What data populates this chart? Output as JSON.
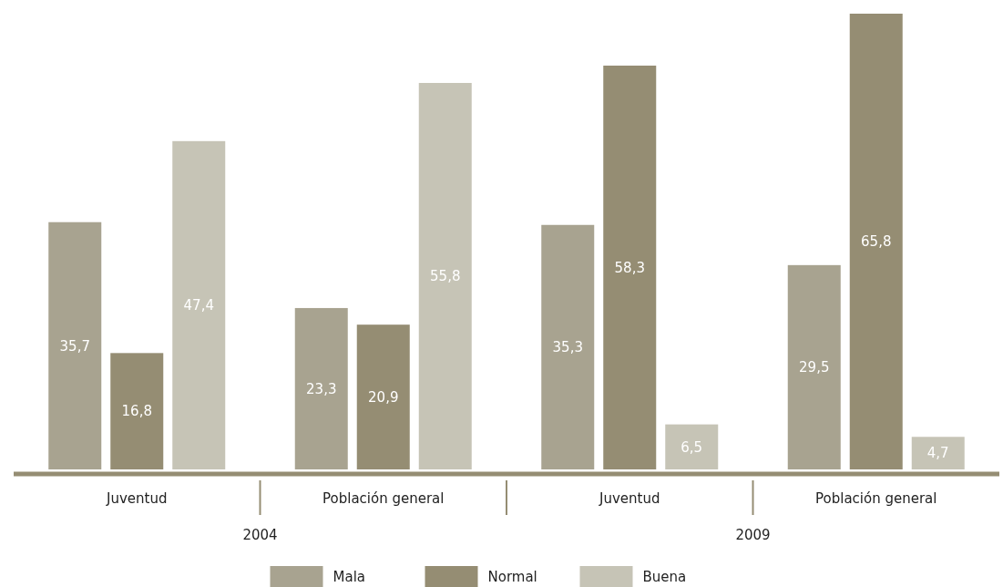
{
  "chart_data": {
    "type": "bar",
    "categories": [
      "Juventud",
      "Población general",
      "Juventud",
      "Población general"
    ],
    "series": [
      {
        "name": "Mala",
        "color": "#a8a390",
        "values": [
          35.7,
          23.3,
          35.3,
          29.5
        ],
        "value_labels": [
          "35,7",
          "23,3",
          "35,3",
          "29,5"
        ]
      },
      {
        "name": "Normal",
        "color": "#958d73",
        "values": [
          16.8,
          20.9,
          58.3,
          65.8
        ],
        "value_labels": [
          "16,8",
          "20,9",
          "58,3",
          "65,8"
        ]
      },
      {
        "name": "Buena",
        "color": "#c6c4b6",
        "values": [
          47.4,
          55.8,
          6.5,
          4.7
        ],
        "value_labels": [
          "47,4",
          "55,8",
          "6,5",
          "4,7"
        ]
      }
    ],
    "annotations": [
      "2004",
      "2009"
    ],
    "legend": "bottom"
  }
}
